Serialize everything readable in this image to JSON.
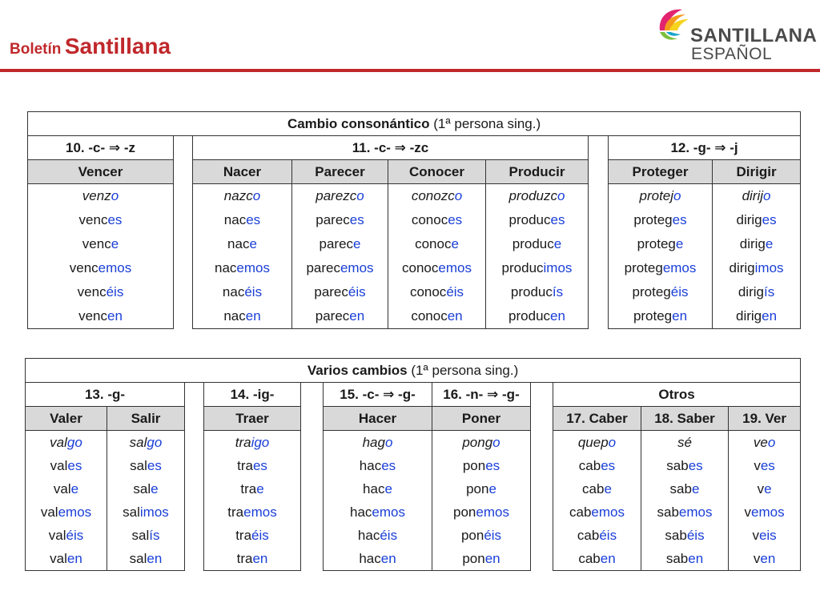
{
  "header": {
    "title_small": "Boletín",
    "title_large": "Santillana",
    "logo_line1": "SANTILLANA",
    "logo_line2": "ESPAÑOL"
  },
  "table1": {
    "title_bold": "Cambio consonántico",
    "title_normal": "(1ª persona sing.)",
    "groups": [
      "10. -c- ⇒ -z",
      "11. -c- ⇒ -zc",
      "12. -g- ⇒ -j"
    ],
    "verbs": [
      {
        "name": "Vencer",
        "forms": [
          [
            "venz",
            "o"
          ],
          [
            "venc",
            "es"
          ],
          [
            "venc",
            "e"
          ],
          [
            "venc",
            "emos"
          ],
          [
            "venc",
            "éis"
          ],
          [
            "venc",
            "en"
          ]
        ]
      },
      {
        "name": "Nacer",
        "forms": [
          [
            "nazc",
            "o"
          ],
          [
            "nac",
            "es"
          ],
          [
            "nac",
            "e"
          ],
          [
            "nac",
            "emos"
          ],
          [
            "nac",
            "éis"
          ],
          [
            "nac",
            "en"
          ]
        ]
      },
      {
        "name": "Parecer",
        "forms": [
          [
            "parezc",
            "o"
          ],
          [
            "parec",
            "es"
          ],
          [
            "parec",
            "e"
          ],
          [
            "parec",
            "emos"
          ],
          [
            "parec",
            "éis"
          ],
          [
            "parec",
            "en"
          ]
        ]
      },
      {
        "name": "Conocer",
        "forms": [
          [
            "conozc",
            "o"
          ],
          [
            "conoc",
            "es"
          ],
          [
            "conoc",
            "e"
          ],
          [
            "conoc",
            "emos"
          ],
          [
            "conoc",
            "éis"
          ],
          [
            "conoc",
            "en"
          ]
        ]
      },
      {
        "name": "Producir",
        "forms": [
          [
            "produzc",
            "o"
          ],
          [
            "produc",
            "es"
          ],
          [
            "produc",
            "e"
          ],
          [
            "produc",
            "imos"
          ],
          [
            "produc",
            "ís"
          ],
          [
            "produc",
            "en"
          ]
        ]
      },
      {
        "name": "Proteger",
        "forms": [
          [
            "protej",
            "o"
          ],
          [
            "proteg",
            "es"
          ],
          [
            "proteg",
            "e"
          ],
          [
            "proteg",
            "emos"
          ],
          [
            "proteg",
            "éis"
          ],
          [
            "proteg",
            "en"
          ]
        ]
      },
      {
        "name": "Dirigir",
        "forms": [
          [
            "dirij",
            "o"
          ],
          [
            "dirig",
            "es"
          ],
          [
            "dirig",
            "e"
          ],
          [
            "dirig",
            "imos"
          ],
          [
            "dirig",
            "ís"
          ],
          [
            "dirig",
            "en"
          ]
        ]
      }
    ]
  },
  "table2": {
    "title_bold": "Varios cambios",
    "title_normal": "(1ª persona sing.)",
    "groups": [
      "13. -g-",
      "14. -ig-",
      "15. -c- ⇒ -g-",
      "16. -n- ⇒ -g-",
      "Otros"
    ],
    "verbs": [
      {
        "name": "Valer",
        "forms": [
          [
            "val",
            "go"
          ],
          [
            "val",
            "es"
          ],
          [
            "val",
            "e"
          ],
          [
            "val",
            "emos"
          ],
          [
            "val",
            "éis"
          ],
          [
            "val",
            "en"
          ]
        ]
      },
      {
        "name": "Salir",
        "forms": [
          [
            "sal",
            "go"
          ],
          [
            "sal",
            "es"
          ],
          [
            "sal",
            "e"
          ],
          [
            "sal",
            "imos"
          ],
          [
            "sal",
            "ís"
          ],
          [
            "sal",
            "en"
          ]
        ]
      },
      {
        "name": "Traer",
        "forms": [
          [
            "tra",
            "igo"
          ],
          [
            "tra",
            "es"
          ],
          [
            "tra",
            "e"
          ],
          [
            "tra",
            "emos"
          ],
          [
            "tra",
            "éis"
          ],
          [
            "tra",
            "en"
          ]
        ]
      },
      {
        "name": "Hacer",
        "forms": [
          [
            "hag",
            "o"
          ],
          [
            "hac",
            "es"
          ],
          [
            "hac",
            "e"
          ],
          [
            "hac",
            "emos"
          ],
          [
            "hac",
            "éis"
          ],
          [
            "hac",
            "en"
          ]
        ]
      },
      {
        "name": "Poner",
        "forms": [
          [
            "pong",
            "o"
          ],
          [
            "pon",
            "es"
          ],
          [
            "pon",
            "e"
          ],
          [
            "pon",
            "emos"
          ],
          [
            "pon",
            "éis"
          ],
          [
            "pon",
            "en"
          ]
        ]
      },
      {
        "name": "17. Caber",
        "forms": [
          [
            "quep",
            "o"
          ],
          [
            "cab",
            "es"
          ],
          [
            "cab",
            "e"
          ],
          [
            "cab",
            "emos"
          ],
          [
            "cab",
            "éis"
          ],
          [
            "cab",
            "en"
          ]
        ]
      },
      {
        "name": "18. Saber",
        "forms": [
          [
            "sé",
            ""
          ],
          [
            "sab",
            "es"
          ],
          [
            "sab",
            "e"
          ],
          [
            "sab",
            "emos"
          ],
          [
            "sab",
            "éis"
          ],
          [
            "sab",
            "en"
          ]
        ]
      },
      {
        "name": "19. Ver",
        "forms": [
          [
            "ve",
            "o"
          ],
          [
            "v",
            "es"
          ],
          [
            "v",
            "e"
          ],
          [
            "v",
            "emos"
          ],
          [
            "v",
            "eis"
          ],
          [
            "v",
            "en"
          ]
        ]
      }
    ]
  }
}
